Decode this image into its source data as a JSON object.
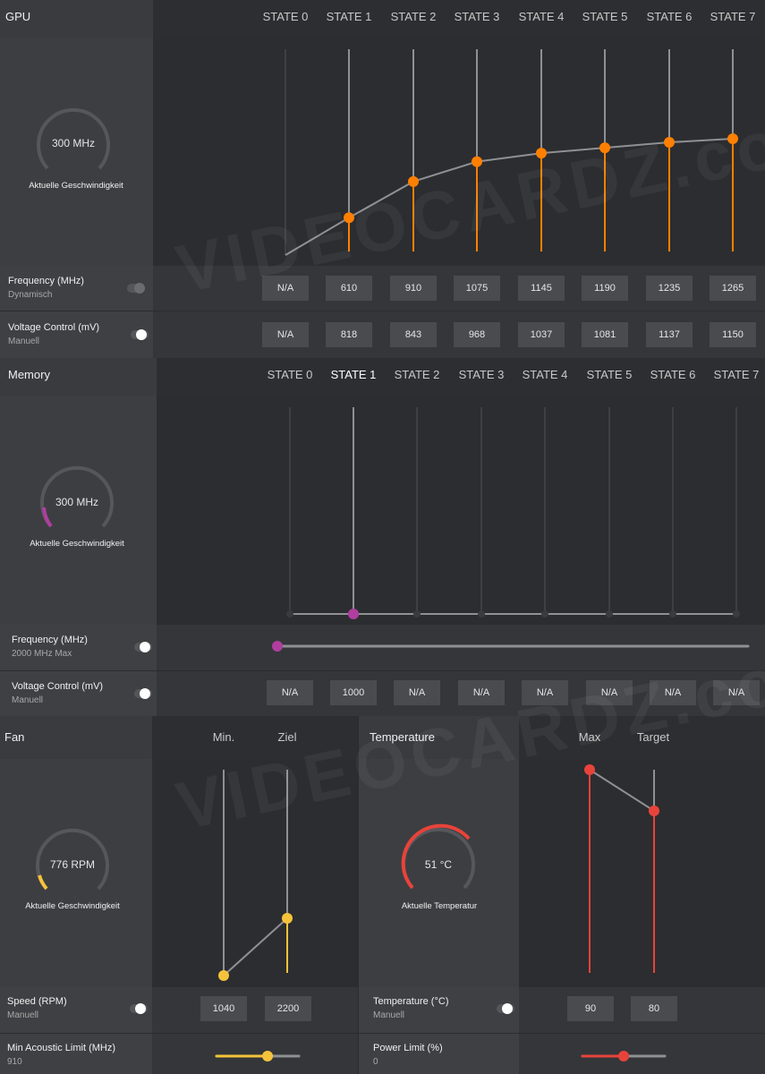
{
  "gpu": {
    "title": "GPU",
    "states": [
      "STATE 0",
      "STATE 1",
      "STATE 2",
      "STATE 3",
      "STATE 4",
      "STATE 5",
      "STATE 6",
      "STATE 7"
    ],
    "gauge_value": "300 MHz",
    "gauge_caption": "Aktuelle Geschwindigkeit",
    "frequency": {
      "label": "Frequency (MHz)",
      "mode": "Dynamisch",
      "values": [
        "N/A",
        "610",
        "910",
        "1075",
        "1145",
        "1190",
        "1235",
        "1265"
      ]
    },
    "voltage": {
      "label": "Voltage Control (mV)",
      "mode": "Manuell",
      "values": [
        "N/A",
        "818",
        "843",
        "968",
        "1037",
        "1081",
        "1137",
        "1150"
      ]
    }
  },
  "memory": {
    "title": "Memory",
    "states": [
      "STATE 0",
      "STATE 1",
      "STATE 2",
      "STATE 3",
      "STATE 4",
      "STATE 5",
      "STATE 6",
      "STATE 7"
    ],
    "gauge_value": "300 MHz",
    "gauge_caption": "Aktuelle Geschwindigkeit",
    "frequency": {
      "label": "Frequency (MHz)",
      "mode": "2000 MHz Max",
      "slider_fraction": 0
    },
    "voltage": {
      "label": "Voltage Control (mV)",
      "mode": "Manuell",
      "values": [
        "N/A",
        "1000",
        "N/A",
        "N/A",
        "N/A",
        "N/A",
        "N/A",
        "N/A"
      ]
    }
  },
  "fan": {
    "title": "Fan",
    "col_min": "Min.",
    "col_target": "Ziel",
    "gauge_value": "776 RPM",
    "gauge_caption": "Aktuelle Geschwindigkeit",
    "speed": {
      "label": "Speed (RPM)",
      "mode": "Manuell",
      "min": "1040",
      "target": "2200"
    },
    "acoustic": {
      "label": "Min Acoustic Limit (MHz)",
      "value": "910",
      "slider_fraction": 0.62
    }
  },
  "temperature": {
    "title": "Temperature",
    "col_max": "Max",
    "col_target": "Target",
    "gauge_value": "51 °C",
    "gauge_caption": "Aktuelle Temperatur",
    "temp_row": {
      "label": "Temperature (°C)",
      "mode": "Manuell",
      "max": "90",
      "target": "80"
    },
    "power": {
      "label": "Power Limit (%)",
      "value": "0",
      "slider_fraction": 0.5
    }
  },
  "colors": {
    "gpu_accent": "#ff7f00",
    "memory_accent": "#b03ea0",
    "fan_accent": "#f5c33b",
    "temp_accent": "#e8433a"
  },
  "watermark": "VIDEOCARDZ.com"
}
